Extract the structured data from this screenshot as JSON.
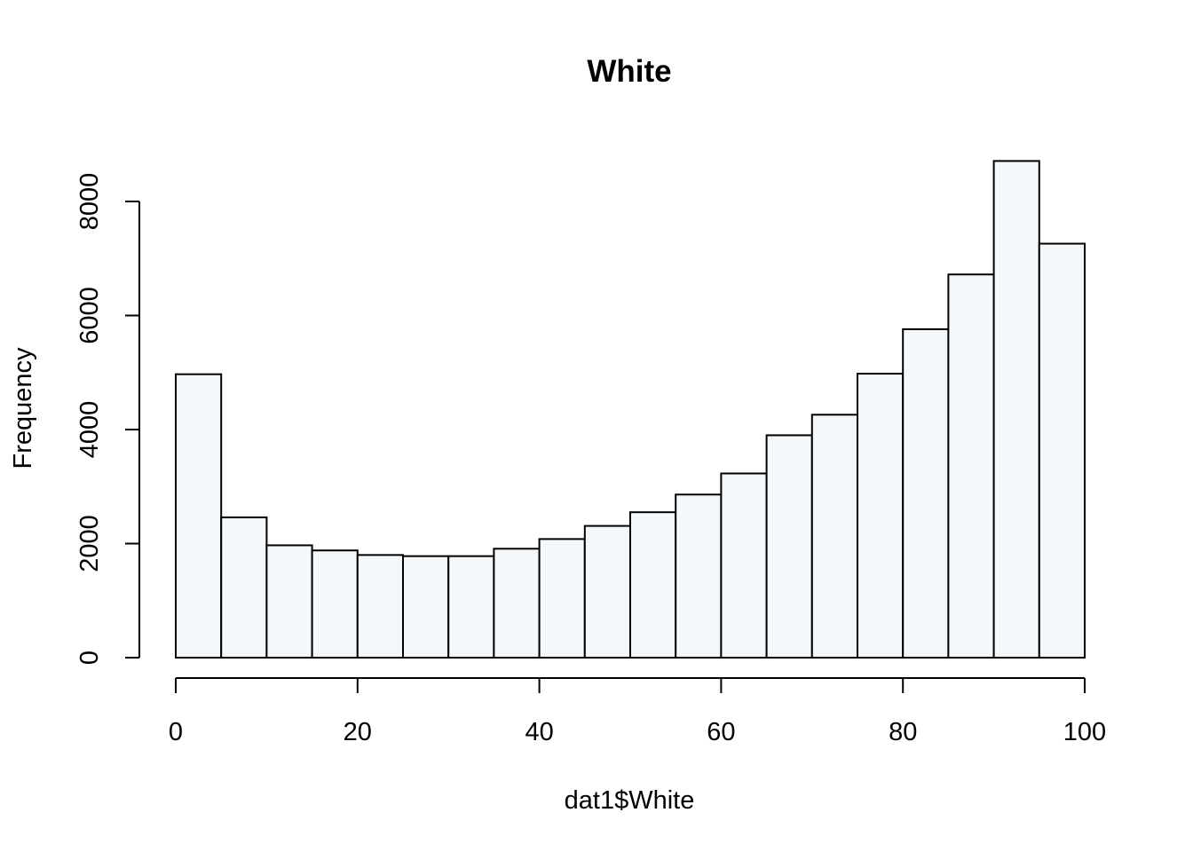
{
  "chart_data": {
    "type": "bar",
    "title": "White",
    "xlabel": "dat1$White",
    "ylabel": "Frequency",
    "bins": [
      {
        "start": 0,
        "end": 5,
        "value": 4970
      },
      {
        "start": 5,
        "end": 10,
        "value": 2460
      },
      {
        "start": 10,
        "end": 15,
        "value": 1970
      },
      {
        "start": 15,
        "end": 20,
        "value": 1880
      },
      {
        "start": 20,
        "end": 25,
        "value": 1800
      },
      {
        "start": 25,
        "end": 30,
        "value": 1780
      },
      {
        "start": 30,
        "end": 35,
        "value": 1780
      },
      {
        "start": 35,
        "end": 40,
        "value": 1910
      },
      {
        "start": 40,
        "end": 45,
        "value": 2080
      },
      {
        "start": 45,
        "end": 50,
        "value": 2310
      },
      {
        "start": 50,
        "end": 55,
        "value": 2550
      },
      {
        "start": 55,
        "end": 60,
        "value": 2860
      },
      {
        "start": 60,
        "end": 65,
        "value": 3230
      },
      {
        "start": 65,
        "end": 70,
        "value": 3900
      },
      {
        "start": 70,
        "end": 75,
        "value": 4260
      },
      {
        "start": 75,
        "end": 80,
        "value": 4980
      },
      {
        "start": 80,
        "end": 85,
        "value": 5760
      },
      {
        "start": 85,
        "end": 90,
        "value": 6720
      },
      {
        "start": 90,
        "end": 95,
        "value": 8710
      },
      {
        "start": 95,
        "end": 100,
        "value": 7260
      }
    ],
    "x_ticks": [
      0,
      20,
      40,
      60,
      80,
      100
    ],
    "y_ticks": [
      0,
      2000,
      4000,
      6000,
      8000
    ],
    "xlim": [
      0,
      100
    ],
    "ylim": [
      0,
      8000
    ],
    "grid": false,
    "bar_fill": "#f5f8fa",
    "bar_stroke": "#000000"
  }
}
